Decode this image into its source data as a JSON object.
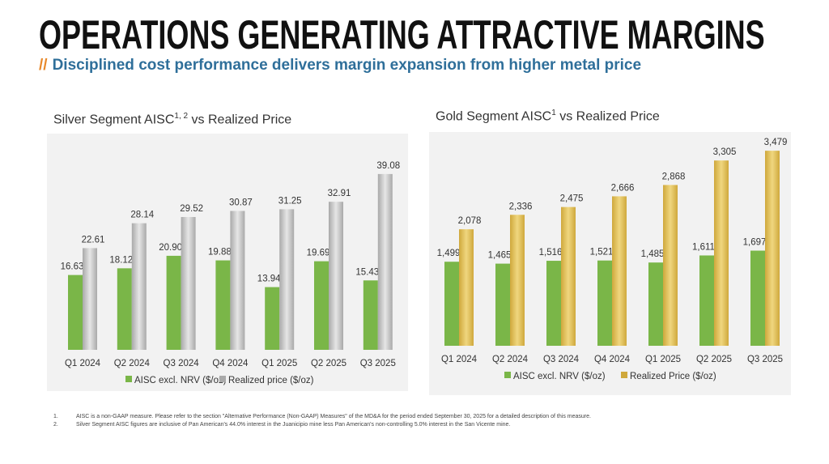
{
  "header": {
    "title": "OPERATIONS GENERATING ATTRACTIVE MARGINS",
    "subtitle_mark": "//",
    "subtitle": "Disciplined cost performance delivers margin expansion from higher metal price"
  },
  "colors": {
    "green": "#7ab648",
    "silver": "#bdbdbd",
    "gold": "#d9b54f",
    "panel": "#f2f2f2"
  },
  "footnotes": [
    {
      "num": "1.",
      "text": "AISC is a non-GAAP measure. Please refer to the section \"Alternative Performance (Non-GAAP) Measures\" of the MD&A for the period ended September 30, 2025 for a detailed description of this measure."
    },
    {
      "num": "2.",
      "text": "Silver Segment AISC figures are inclusive of Pan American's 44.0% interest in the Juanicipio mine less Pan American's non-controlling 5.0% interest in the San Vicente mine."
    }
  ],
  "chart_data": [
    {
      "type": "bar",
      "title": "Silver Segment AISC",
      "title_sup": "1, 2",
      "title_rest": " vs Realized Price",
      "categories": [
        "Q1 2024",
        "Q2 2024",
        "Q3 2024",
        "Q4 2024",
        "Q1 2025",
        "Q2 2025",
        "Q3 2025"
      ],
      "series": [
        {
          "name": "AISC excl. NRV ($/oz)",
          "values": [
            16.63,
            18.12,
            20.9,
            19.88,
            13.94,
            19.69,
            15.43
          ],
          "labels": [
            "16.63",
            "18.12",
            "20.90",
            "19.88",
            "13.94",
            "19.69",
            "15.43"
          ]
        },
        {
          "name": "Realized price ($/oz)",
          "values": [
            22.61,
            28.14,
            29.52,
            30.87,
            31.25,
            32.91,
            39.08
          ],
          "labels": [
            "22.61",
            "28.14",
            "29.52",
            "30.87",
            "31.25",
            "32.91",
            "39.08"
          ]
        }
      ],
      "ylim": [
        0,
        45
      ],
      "legend": "bottom"
    },
    {
      "type": "bar",
      "title": "Gold Segment AISC",
      "title_sup": "1",
      "title_rest": " vs Realized Price",
      "categories": [
        "Q1 2024",
        "Q2 2024",
        "Q3 2024",
        "Q4 2024",
        "Q1 2025",
        "Q2 2025",
        "Q3 2025"
      ],
      "series": [
        {
          "name": "AISC excl. NRV ($/oz)",
          "values": [
            1499,
            1465,
            1516,
            1521,
            1485,
            1611,
            1697
          ],
          "labels": [
            "1,499",
            "1,465",
            "1,516",
            "1,521",
            "1,485",
            "1,611",
            "1,697"
          ]
        },
        {
          "name": "Realized Price ($/oz)",
          "values": [
            2078,
            2336,
            2475,
            2666,
            2868,
            3305,
            3479
          ],
          "labels": [
            "2,078",
            "2,336",
            "2,475",
            "2,666",
            "2,868",
            "3,305",
            "3,479"
          ]
        }
      ],
      "ylim": [
        0,
        3900
      ],
      "legend": "bottom"
    }
  ]
}
